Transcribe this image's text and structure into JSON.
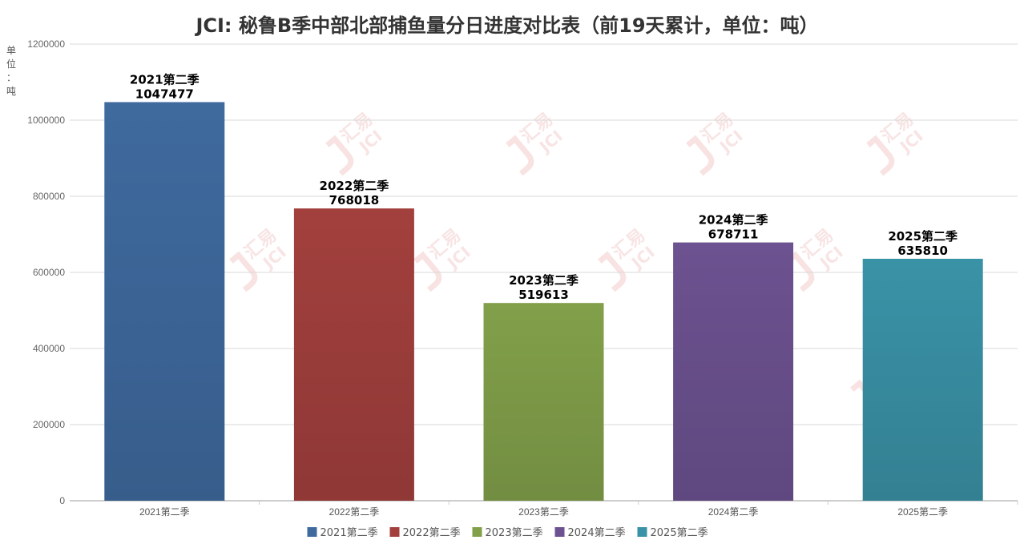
{
  "chart_data": {
    "type": "bar",
    "title": "JCI: 秘鲁B季中部北部捕鱼量分日进度对比表（前19天累计，单位：吨）",
    "ylabel_chars": [
      "单",
      "位",
      "：",
      "吨"
    ],
    "ylim": [
      0,
      1200000
    ],
    "yticks": [
      0,
      200000,
      400000,
      600000,
      800000,
      1000000,
      1200000
    ],
    "categories": [
      "2021第二季",
      "2022第二季",
      "2023第二季",
      "2024第二季",
      "2025第二季"
    ],
    "values": [
      1047477,
      768018,
      519613,
      678711,
      635810
    ],
    "colors": [
      "#3f6a9e",
      "#a2403d",
      "#82a04a",
      "#6c5290",
      "#3a92a6"
    ],
    "grid": true,
    "legend_position": "bottom",
    "legend": [
      "2021第二季",
      "2022第二季",
      "2023第二季",
      "2024第二季",
      "2025第二季"
    ],
    "watermark": [
      "汇易",
      "JCI"
    ]
  }
}
